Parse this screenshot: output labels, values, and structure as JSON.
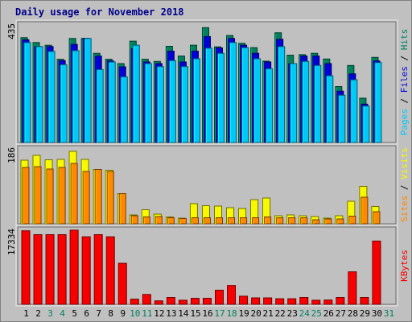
{
  "title": "Daily usage for November 2018",
  "colors": {
    "hits": "#00805c",
    "files": "#0000d8",
    "pages": "#00c8f8",
    "visits": "#f8f800",
    "sites": "#ff8800",
    "kbytes": "#f80000",
    "weekend": "#00805c",
    "weekday": "#000000",
    "bg": "#c0c0c0"
  },
  "chart_data": {
    "type": "bar",
    "categories": [
      "1",
      "2",
      "3",
      "4",
      "5",
      "6",
      "7",
      "8",
      "9",
      "10",
      "11",
      "12",
      "13",
      "14",
      "15",
      "16",
      "17",
      "18",
      "19",
      "20",
      "21",
      "22",
      "23",
      "24",
      "25",
      "26",
      "27",
      "28",
      "29",
      "30",
      "31"
    ],
    "weekend_days": [
      "3",
      "4",
      "10",
      "11",
      "17",
      "18",
      "24",
      "25",
      "31"
    ],
    "panels": [
      {
        "max_label": "435",
        "ylim": [
          0,
          435
        ],
        "right_labels": [
          "Pages",
          "Files",
          "Hits"
        ],
        "series": [
          {
            "name": "Hits",
            "values": [
              388,
              370,
              360,
              308,
              385,
              385,
              330,
              308,
              292,
              375,
              308,
              300,
              356,
              320,
              360,
              425,
              354,
              396,
              367,
              351,
              301,
              406,
              323,
              325,
              330,
              309,
              207,
              285,
              164,
              315,
              0
            ]
          },
          {
            "name": "Files",
            "values": [
              380,
              355,
              355,
              303,
              363,
              385,
              320,
              302,
              280,
              347,
              298,
              292,
              338,
              298,
              338,
              392,
              350,
              385,
              360,
              330,
              298,
              382,
              292,
              320,
              320,
              292,
              190,
              254,
              142,
              302,
              0
            ]
          },
          {
            "name": "Pages",
            "values": [
              370,
              355,
              337,
              288,
              340,
              385,
              270,
              298,
              243,
              360,
              292,
              281,
              303,
              281,
              310,
              349,
              330,
              370,
              351,
              310,
              273,
              355,
              292,
              300,
              285,
              247,
              175,
              232,
              135,
              296,
              0
            ]
          }
        ]
      },
      {
        "max_label": "186",
        "ylim": [
          0,
          186
        ],
        "right_labels": [
          "Sites",
          "Visits"
        ],
        "series": [
          {
            "name": "Visits",
            "values": [
              158,
              170,
              159,
              160,
              180,
              160,
              135,
              133,
              75,
              22,
              35,
              24,
              17,
              14,
              50,
              45,
              44,
              40,
              38,
              60,
              64,
              20,
              22,
              20,
              18,
              14,
              20,
              56,
              93,
              43,
              0
            ]
          },
          {
            "name": "Sites",
            "values": [
              140,
              142,
              136,
              140,
              150,
              130,
              135,
              130,
              75,
              20,
              17,
              18,
              15,
              13,
              15,
              15,
              15,
              15,
              15,
              15,
              17,
              15,
              15,
              15,
              10,
              12,
              12,
              19,
              66,
              30,
              0
            ]
          }
        ]
      },
      {
        "max_label": "17334",
        "ylim": [
          0,
          17334
        ],
        "right_labels": [
          "KBytes"
        ],
        "series": [
          {
            "name": "KBytes",
            "values": [
              17200,
              16300,
              16300,
              16300,
              17350,
              15800,
              16300,
              15800,
              9600,
              1200,
              2300,
              800,
              1600,
              950,
              1400,
              1400,
              3300,
              4400,
              1900,
              1500,
              1500,
              1300,
              1300,
              1600,
              950,
              1000,
              1600,
              7600,
              1600,
              14800,
              0
            ]
          }
        ]
      }
    ]
  }
}
